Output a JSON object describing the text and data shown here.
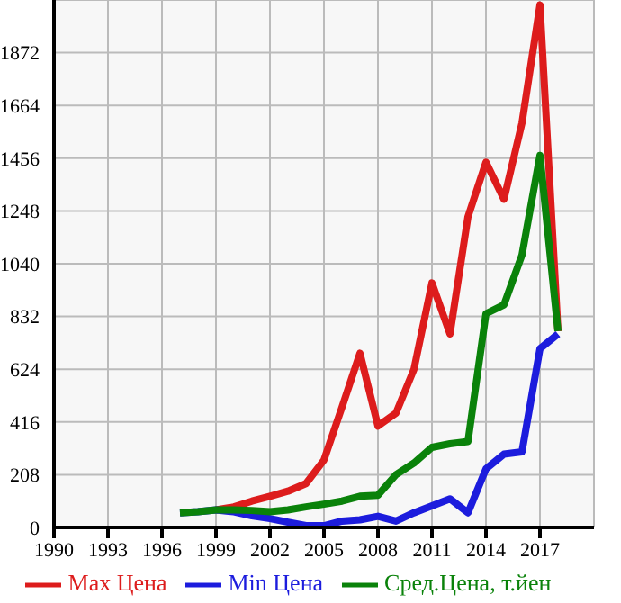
{
  "chart_data": {
    "type": "line",
    "x": [
      1997,
      1998,
      1999,
      2000,
      2001,
      2002,
      2003,
      2004,
      2005,
      2006,
      2007,
      2008,
      2009,
      2010,
      2011,
      2012,
      2013,
      2014,
      2015,
      2016,
      2017,
      2018
    ],
    "series": [
      {
        "name": "Max Цена",
        "color": "#dd1c1c",
        "values": [
          null,
          null,
          69,
          81,
          104,
          123,
          143,
          173,
          266,
          474,
          687,
          400,
          451,
          624,
          964,
          763,
          1225,
          1440,
          1294,
          1594,
          2060,
          774
        ]
      },
      {
        "name": "Min Цена",
        "color": "#1c1cdd",
        "values": [
          58,
          62,
          69,
          62,
          46,
          35,
          21,
          7,
          7,
          25,
          30,
          44,
          25,
          58,
          85,
          113,
          58,
          231,
          289,
          298,
          705,
          763
        ]
      },
      {
        "name": "Сред.Цена, т.йен",
        "color": "#0a820a",
        "values": [
          58,
          62,
          69,
          69,
          67,
          62,
          69,
          81,
          92,
          104,
          123,
          127,
          208,
          254,
          316,
          330,
          339,
          843,
          878,
          1074,
          1467,
          774
        ]
      }
    ],
    "xlim": [
      1990,
      2020
    ],
    "xticks": [
      1990,
      1993,
      1996,
      1999,
      2002,
      2005,
      2008,
      2011,
      2014,
      2017
    ],
    "ylim": [
      0,
      2080
    ],
    "yticks": [
      0,
      208,
      416,
      624,
      832,
      1040,
      1248,
      1456,
      1664,
      1872
    ],
    "grid": true,
    "legend": "bottom",
    "marker": "none",
    "line_style": "solid"
  }
}
